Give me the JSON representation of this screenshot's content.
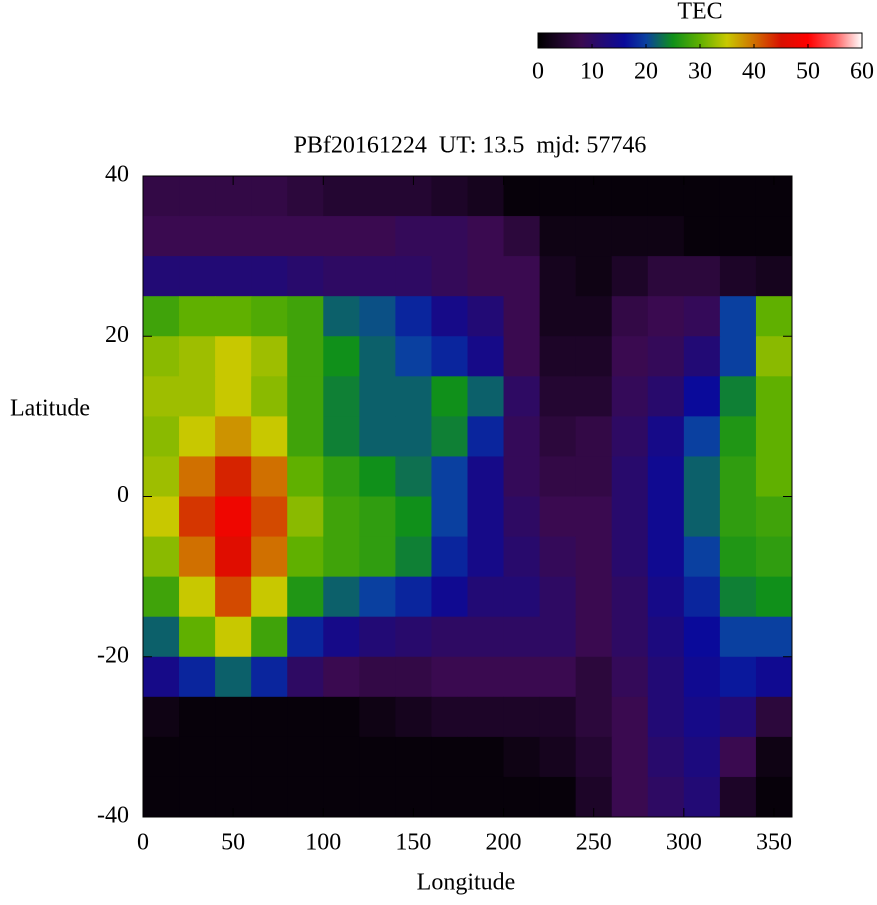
{
  "chart_data": {
    "type": "heatmap",
    "title": "PBf20161224  UT: 13.5  mjd: 57746",
    "x_label": "Longitude",
    "y_label": "Latitude",
    "x": [
      10,
      30,
      50,
      70,
      90,
      110,
      130,
      150,
      170,
      190,
      210,
      230,
      250,
      270,
      290,
      310,
      330,
      350
    ],
    "y": [
      37.5,
      32.5,
      27.5,
      22.5,
      17.5,
      12.5,
      7.5,
      2.5,
      -2.5,
      -7.5,
      -12.5,
      -17.5,
      -22.5,
      -27.5,
      -32.5,
      -37.5
    ],
    "values": [
      [
        7,
        7,
        7,
        7,
        6,
        5,
        5,
        5,
        4,
        3,
        1,
        1,
        1,
        1,
        1,
        1,
        1,
        1
      ],
      [
        8,
        8,
        8,
        8,
        8,
        8,
        8,
        9,
        9,
        8,
        6,
        2,
        2,
        2,
        2,
        1,
        1,
        1
      ],
      [
        12,
        12,
        12,
        12,
        11,
        10,
        10,
        10,
        9,
        8,
        8,
        3,
        2,
        4,
        6,
        6,
        4,
        3
      ],
      [
        28,
        30,
        30,
        29,
        28,
        22,
        21,
        18,
        14,
        12,
        8,
        3,
        3,
        7,
        8,
        9,
        20,
        30
      ],
      [
        32,
        33,
        35,
        33,
        28,
        25,
        22,
        20,
        18,
        14,
        8,
        4,
        4,
        8,
        9,
        12,
        20,
        32
      ],
      [
        33,
        33,
        35,
        32,
        28,
        24,
        22,
        22,
        25,
        22,
        10,
        5,
        5,
        9,
        11,
        16,
        24,
        30
      ],
      [
        32,
        35,
        38,
        35,
        28,
        24,
        22,
        22,
        24,
        18,
        9,
        6,
        7,
        10,
        14,
        20,
        26,
        30
      ],
      [
        33,
        40,
        44,
        40,
        30,
        27,
        25,
        23,
        20,
        14,
        9,
        7,
        7,
        11,
        15,
        22,
        27,
        30
      ],
      [
        35,
        43,
        48,
        42,
        32,
        28,
        27,
        25,
        20,
        14,
        10,
        8,
        8,
        11,
        15,
        22,
        27,
        28
      ],
      [
        32,
        40,
        46,
        40,
        30,
        28,
        27,
        24,
        18,
        14,
        11,
        9,
        8,
        11,
        15,
        20,
        26,
        27
      ],
      [
        28,
        35,
        42,
        35,
        26,
        22,
        20,
        18,
        15,
        12,
        12,
        10,
        8,
        10,
        14,
        18,
        24,
        25
      ],
      [
        22,
        30,
        35,
        28,
        18,
        14,
        12,
        11,
        10,
        10,
        10,
        10,
        8,
        10,
        13,
        16,
        20,
        20
      ],
      [
        14,
        18,
        22,
        18,
        10,
        8,
        7,
        7,
        8,
        8,
        8,
        8,
        6,
        9,
        12,
        15,
        17,
        15
      ],
      [
        2,
        1,
        1,
        1,
        1,
        1,
        2,
        3,
        4,
        4,
        4,
        4,
        6,
        8,
        12,
        14,
        12,
        6
      ],
      [
        1,
        1,
        1,
        1,
        1,
        1,
        1,
        1,
        1,
        1,
        2,
        3,
        5,
        8,
        11,
        13,
        8,
        2
      ],
      [
        1,
        1,
        1,
        1,
        1,
        1,
        1,
        1,
        1,
        1,
        1,
        1,
        4,
        8,
        10,
        12,
        4,
        1
      ]
    ],
    "xlim": [
      0,
      360
    ],
    "ylim": [
      -40,
      40
    ],
    "xticks": [
      0,
      50,
      100,
      150,
      200,
      250,
      300,
      350
    ],
    "yticks": [
      -40,
      -20,
      0,
      20,
      40
    ],
    "colorbar_label": "TEC",
    "colorbar_lim": [
      0,
      60
    ],
    "colorbar_ticks": [
      0,
      10,
      20,
      30,
      40,
      50,
      60
    ],
    "colorscale": [
      [
        0,
        "#000000"
      ],
      [
        8,
        "#3a0a50"
      ],
      [
        16,
        "#0a0a9a"
      ],
      [
        20,
        "#0a40a0"
      ],
      [
        25,
        "#10901a"
      ],
      [
        30,
        "#60b000"
      ],
      [
        35,
        "#c8c800"
      ],
      [
        40,
        "#d07000"
      ],
      [
        45,
        "#d81000"
      ],
      [
        50,
        "#ff0000"
      ],
      [
        55,
        "#ff6060"
      ],
      [
        60,
        "#ffffff"
      ]
    ]
  }
}
